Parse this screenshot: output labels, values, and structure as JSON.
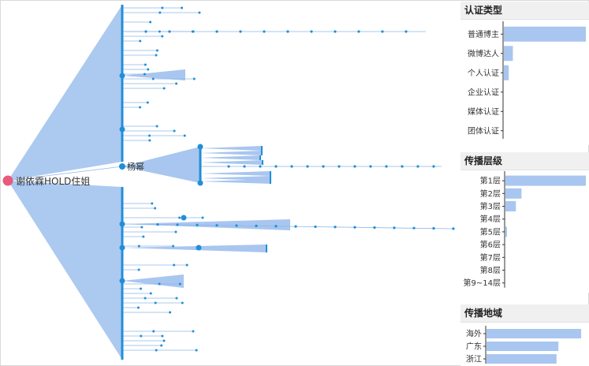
{
  "tree": {
    "root_label": "谢依霖HOLD住姐",
    "hub_label": "杨幂",
    "colors": {
      "fan": "#a8c6ef",
      "node": "#1f8fd8",
      "link": "#8fb6e8",
      "root": "#e85a7c",
      "hub": "#1f8fd8"
    }
  },
  "chart_data": [
    {
      "type": "bar",
      "title": "认证类型",
      "categories": [
        "普通博主",
        "微博达人",
        "个人认证",
        "企业认证",
        "媒体认证",
        "团体认证"
      ],
      "values": [
        100,
        11,
        6,
        0,
        0,
        0
      ],
      "color": "#a8c6ef"
    },
    {
      "type": "bar",
      "title": "传播层级",
      "categories": [
        "第1层",
        "第2层",
        "第3层",
        "第4层",
        "第5层",
        "第6层",
        "第7层",
        "第8层",
        "第9~14层"
      ],
      "values": [
        100,
        20,
        13,
        0,
        2,
        0,
        0,
        0,
        0
      ],
      "color": "#a8c6ef"
    },
    {
      "type": "bar",
      "title": "传播地域",
      "categories": [
        "海外",
        "广东",
        "浙江"
      ],
      "values": [
        100,
        76,
        74
      ],
      "color": "#a8c6ef"
    }
  ]
}
